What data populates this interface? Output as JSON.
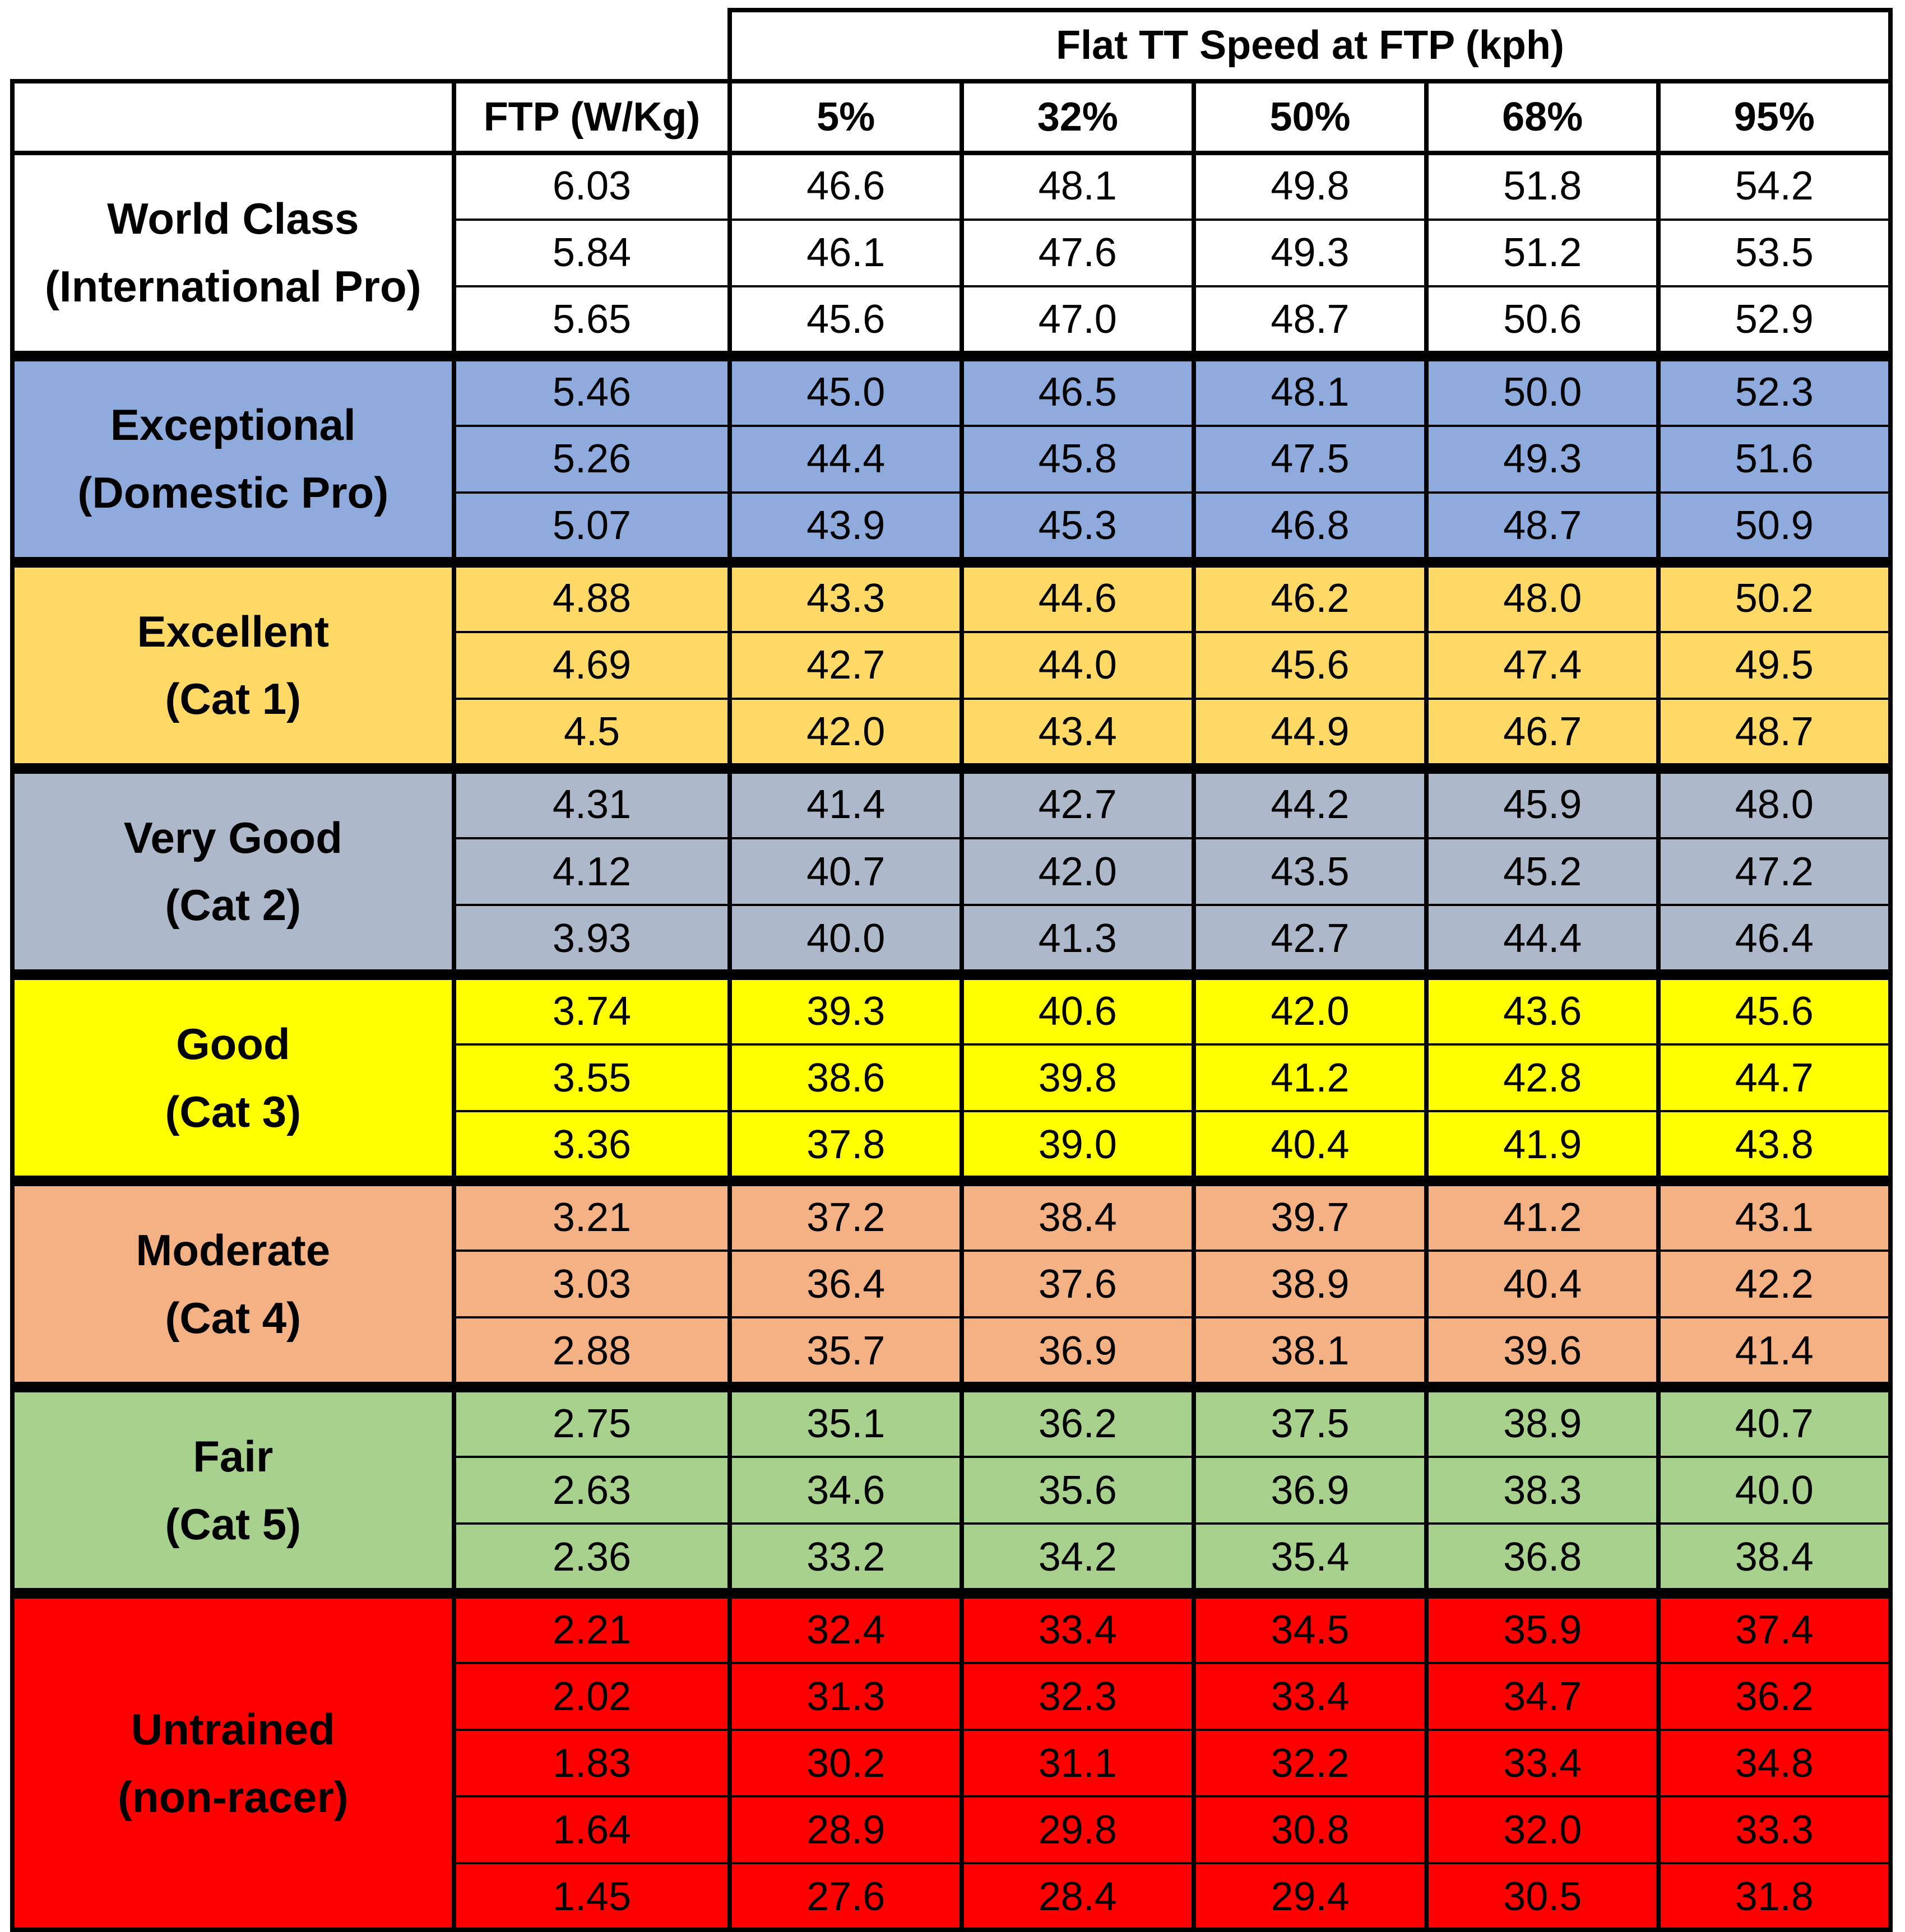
{
  "chart_data": {
    "type": "table",
    "title": "Flat TT Speed at FTP (kph)",
    "columns": [
      "FTP (W/Kg)",
      "5%",
      "32%",
      "50%",
      "68%",
      "95%"
    ],
    "groups": [
      {
        "label": "World Class\n(International Pro)",
        "color": "#ffffff",
        "rows": [
          [
            "6.03",
            "46.6",
            "48.1",
            "49.8",
            "51.8",
            "54.2"
          ],
          [
            "5.84",
            "46.1",
            "47.6",
            "49.3",
            "51.2",
            "53.5"
          ],
          [
            "5.65",
            "45.6",
            "47.0",
            "48.7",
            "50.6",
            "52.9"
          ]
        ]
      },
      {
        "label": "Exceptional\n(Domestic Pro)",
        "color": "#8faadc",
        "rows": [
          [
            "5.46",
            "45.0",
            "46.5",
            "48.1",
            "50.0",
            "52.3"
          ],
          [
            "5.26",
            "44.4",
            "45.8",
            "47.5",
            "49.3",
            "51.6"
          ],
          [
            "5.07",
            "43.9",
            "45.3",
            "46.8",
            "48.7",
            "50.9"
          ]
        ]
      },
      {
        "label": "Excellent\n(Cat 1)",
        "color": "#ffd966",
        "rows": [
          [
            "4.88",
            "43.3",
            "44.6",
            "46.2",
            "48.0",
            "50.2"
          ],
          [
            "4.69",
            "42.7",
            "44.0",
            "45.6",
            "47.4",
            "49.5"
          ],
          [
            "4.5",
            "42.0",
            "43.4",
            "44.9",
            "46.7",
            "48.7"
          ]
        ]
      },
      {
        "label": "Very Good\n(Cat 2)",
        "color": "#adb9ca",
        "rows": [
          [
            "4.31",
            "41.4",
            "42.7",
            "44.2",
            "45.9",
            "48.0"
          ],
          [
            "4.12",
            "40.7",
            "42.0",
            "43.5",
            "45.2",
            "47.2"
          ],
          [
            "3.93",
            "40.0",
            "41.3",
            "42.7",
            "44.4",
            "46.4"
          ]
        ]
      },
      {
        "label": "Good\n(Cat 3)",
        "color": "#ffff00",
        "rows": [
          [
            "3.74",
            "39.3",
            "40.6",
            "42.0",
            "43.6",
            "45.6"
          ],
          [
            "3.55",
            "38.6",
            "39.8",
            "41.2",
            "42.8",
            "44.7"
          ],
          [
            "3.36",
            "37.8",
            "39.0",
            "40.4",
            "41.9",
            "43.8"
          ]
        ]
      },
      {
        "label": "Moderate\n(Cat 4)",
        "color": "#f4b183",
        "rows": [
          [
            "3.21",
            "37.2",
            "38.4",
            "39.7",
            "41.2",
            "43.1"
          ],
          [
            "3.03",
            "36.4",
            "37.6",
            "38.9",
            "40.4",
            "42.2"
          ],
          [
            "2.88",
            "35.7",
            "36.9",
            "38.1",
            "39.6",
            "41.4"
          ]
        ]
      },
      {
        "label": "Fair\n(Cat 5)",
        "color": "#a9d18e",
        "rows": [
          [
            "2.75",
            "35.1",
            "36.2",
            "37.5",
            "38.9",
            "40.7"
          ],
          [
            "2.63",
            "34.6",
            "35.6",
            "36.9",
            "38.3",
            "40.0"
          ],
          [
            "2.36",
            "33.2",
            "34.2",
            "35.4",
            "36.8",
            "38.4"
          ]
        ]
      },
      {
        "label": "Untrained\n(non-racer)",
        "color": "#ff0000",
        "rows": [
          [
            "2.21",
            "32.4",
            "33.4",
            "34.5",
            "35.9",
            "37.4"
          ],
          [
            "2.02",
            "31.3",
            "32.3",
            "33.4",
            "34.7",
            "36.2"
          ],
          [
            "1.83",
            "30.2",
            "31.1",
            "32.2",
            "33.4",
            "34.8"
          ],
          [
            "1.64",
            "28.9",
            "29.8",
            "30.8",
            "32.0",
            "33.3"
          ],
          [
            "1.45",
            "27.6",
            "28.4",
            "29.4",
            "30.5",
            "31.8"
          ]
        ]
      }
    ]
  }
}
